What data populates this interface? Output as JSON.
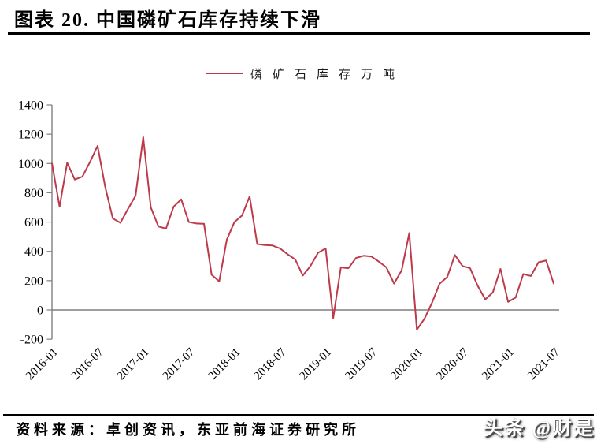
{
  "header": {
    "title": "图表 20. 中国磷矿石库存持续下滑"
  },
  "legend": {
    "label": "磷矿石库存万吨"
  },
  "chart_data": {
    "type": "line",
    "title": "中国磷矿石库存持续下滑",
    "series_name": "磷矿石库存万吨",
    "line_color": "#be3a4b",
    "axis_color": "#7f7f7f",
    "ylim": [
      -200,
      1400
    ],
    "y_ticks": [
      1400,
      1200,
      1000,
      800,
      600,
      400,
      200,
      0,
      -200
    ],
    "x_tick_labels": [
      "2016-01",
      "2016-07",
      "2017-01",
      "2017-07",
      "2018-01",
      "2018-07",
      "2019-01",
      "2019-07",
      "2020-01",
      "2020-07",
      "2021-01",
      "2021-07"
    ],
    "x": [
      "2016-01",
      "2016-02",
      "2016-03",
      "2016-04",
      "2016-05",
      "2016-06",
      "2016-07",
      "2016-08",
      "2016-09",
      "2016-10",
      "2016-11",
      "2016-12",
      "2017-01",
      "2017-02",
      "2017-03",
      "2017-04",
      "2017-05",
      "2017-06",
      "2017-07",
      "2017-08",
      "2017-09",
      "2017-10",
      "2017-11",
      "2017-12",
      "2018-01",
      "2018-02",
      "2018-03",
      "2018-04",
      "2018-05",
      "2018-06",
      "2018-07",
      "2018-08",
      "2018-09",
      "2018-10",
      "2018-11",
      "2018-12",
      "2019-01",
      "2019-02",
      "2019-03",
      "2019-04",
      "2019-05",
      "2019-06",
      "2019-07",
      "2019-08",
      "2019-09",
      "2019-10",
      "2019-11",
      "2019-12",
      "2020-01",
      "2020-02",
      "2020-03",
      "2020-04",
      "2020-05",
      "2020-06",
      "2020-07",
      "2020-08",
      "2020-09",
      "2020-10",
      "2020-11",
      "2020-12",
      "2021-01",
      "2021-02",
      "2021-03",
      "2021-04",
      "2021-05",
      "2021-06",
      "2021-07"
    ],
    "values": [
      1000,
      705,
      1005,
      890,
      910,
      1010,
      1120,
      840,
      625,
      595,
      690,
      780,
      1180,
      700,
      570,
      555,
      705,
      755,
      600,
      590,
      588,
      240,
      195,
      480,
      600,
      645,
      775,
      450,
      443,
      440,
      420,
      380,
      345,
      235,
      300,
      390,
      420,
      -55,
      290,
      285,
      355,
      370,
      365,
      330,
      290,
      180,
      270,
      525,
      -135,
      -60,
      50,
      180,
      225,
      375,
      300,
      285,
      165,
      72,
      120,
      280,
      55,
      85,
      245,
      232,
      325,
      338,
      180
    ]
  },
  "footer": {
    "source": "资料来源：卓创资讯，东亚前海证券研究所"
  },
  "watermark": {
    "text": "头条 @财是"
  }
}
